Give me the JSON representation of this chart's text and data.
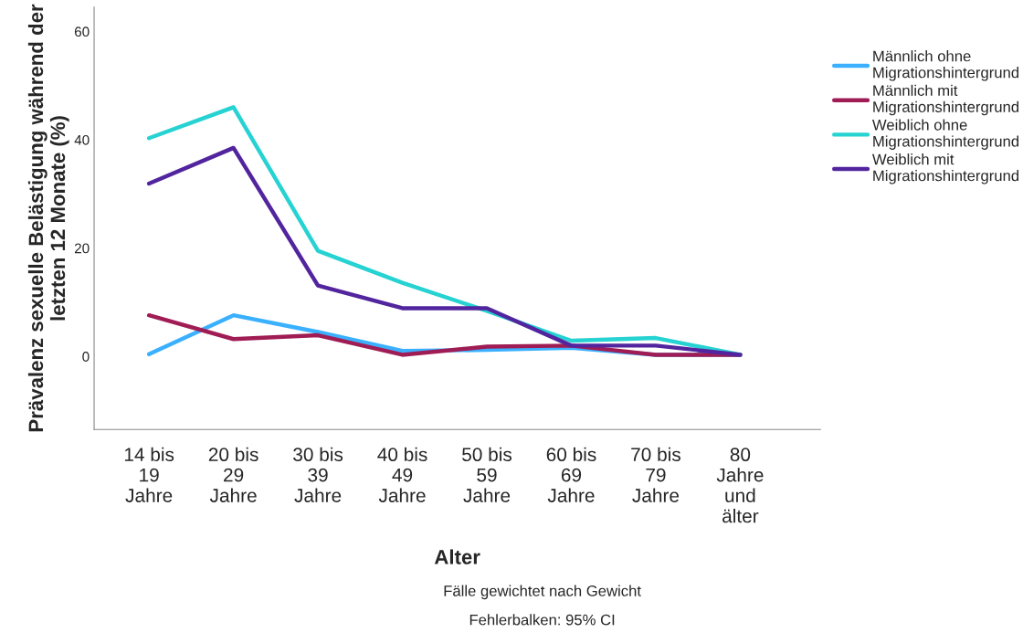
{
  "chart_data": {
    "type": "line",
    "xlabel": "Alter",
    "ylabel": "Prävalenz sexuelle Belästigung während der letzten 12 Monate (%)",
    "categories": [
      "14 bis\n19\nJahre",
      "20 bis\n29\nJahre",
      "30 bis\n39\nJahre",
      "40 bis\n49\nJahre",
      "50 bis\n59\nJahre",
      "60 bis\n69\nJahre",
      "70 bis\n79\nJahre",
      "80\nJahre\nund\nälter"
    ],
    "series": [
      {
        "name": "Männlich ohne\nMigrationshintergrund",
        "color": "#3ab0ff",
        "values": [
          0.4,
          7.6,
          4.5,
          1.0,
          1.2,
          1.6,
          0.3,
          0.3
        ]
      },
      {
        "name": "Männlich mit\nMigrationshintergrund",
        "color": "#a01c54",
        "values": [
          7.6,
          3.2,
          3.9,
          0.3,
          1.8,
          2.0,
          0.3,
          0.3
        ]
      },
      {
        "name": "Weiblich ohne\nMigrationshintergrund",
        "color": "#26d2d2",
        "values": [
          40.3,
          46.0,
          19.5,
          13.6,
          8.4,
          2.9,
          3.4,
          0.3
        ]
      },
      {
        "name": "Weiblich mit\nMigrationshintergrund",
        "color": "#52259e",
        "values": [
          31.9,
          38.5,
          13.1,
          8.9,
          8.9,
          2.0,
          2.0,
          0.3
        ]
      }
    ],
    "ylim": [
      -13.5,
      64.5
    ],
    "yticks": [
      0,
      20,
      40,
      60
    ],
    "grid": false,
    "legend": "top right",
    "line_style": "solid",
    "annotations": [
      "Fälle gewichtet nach Gewicht",
      "Fehlerbalken: 95% CI"
    ]
  }
}
